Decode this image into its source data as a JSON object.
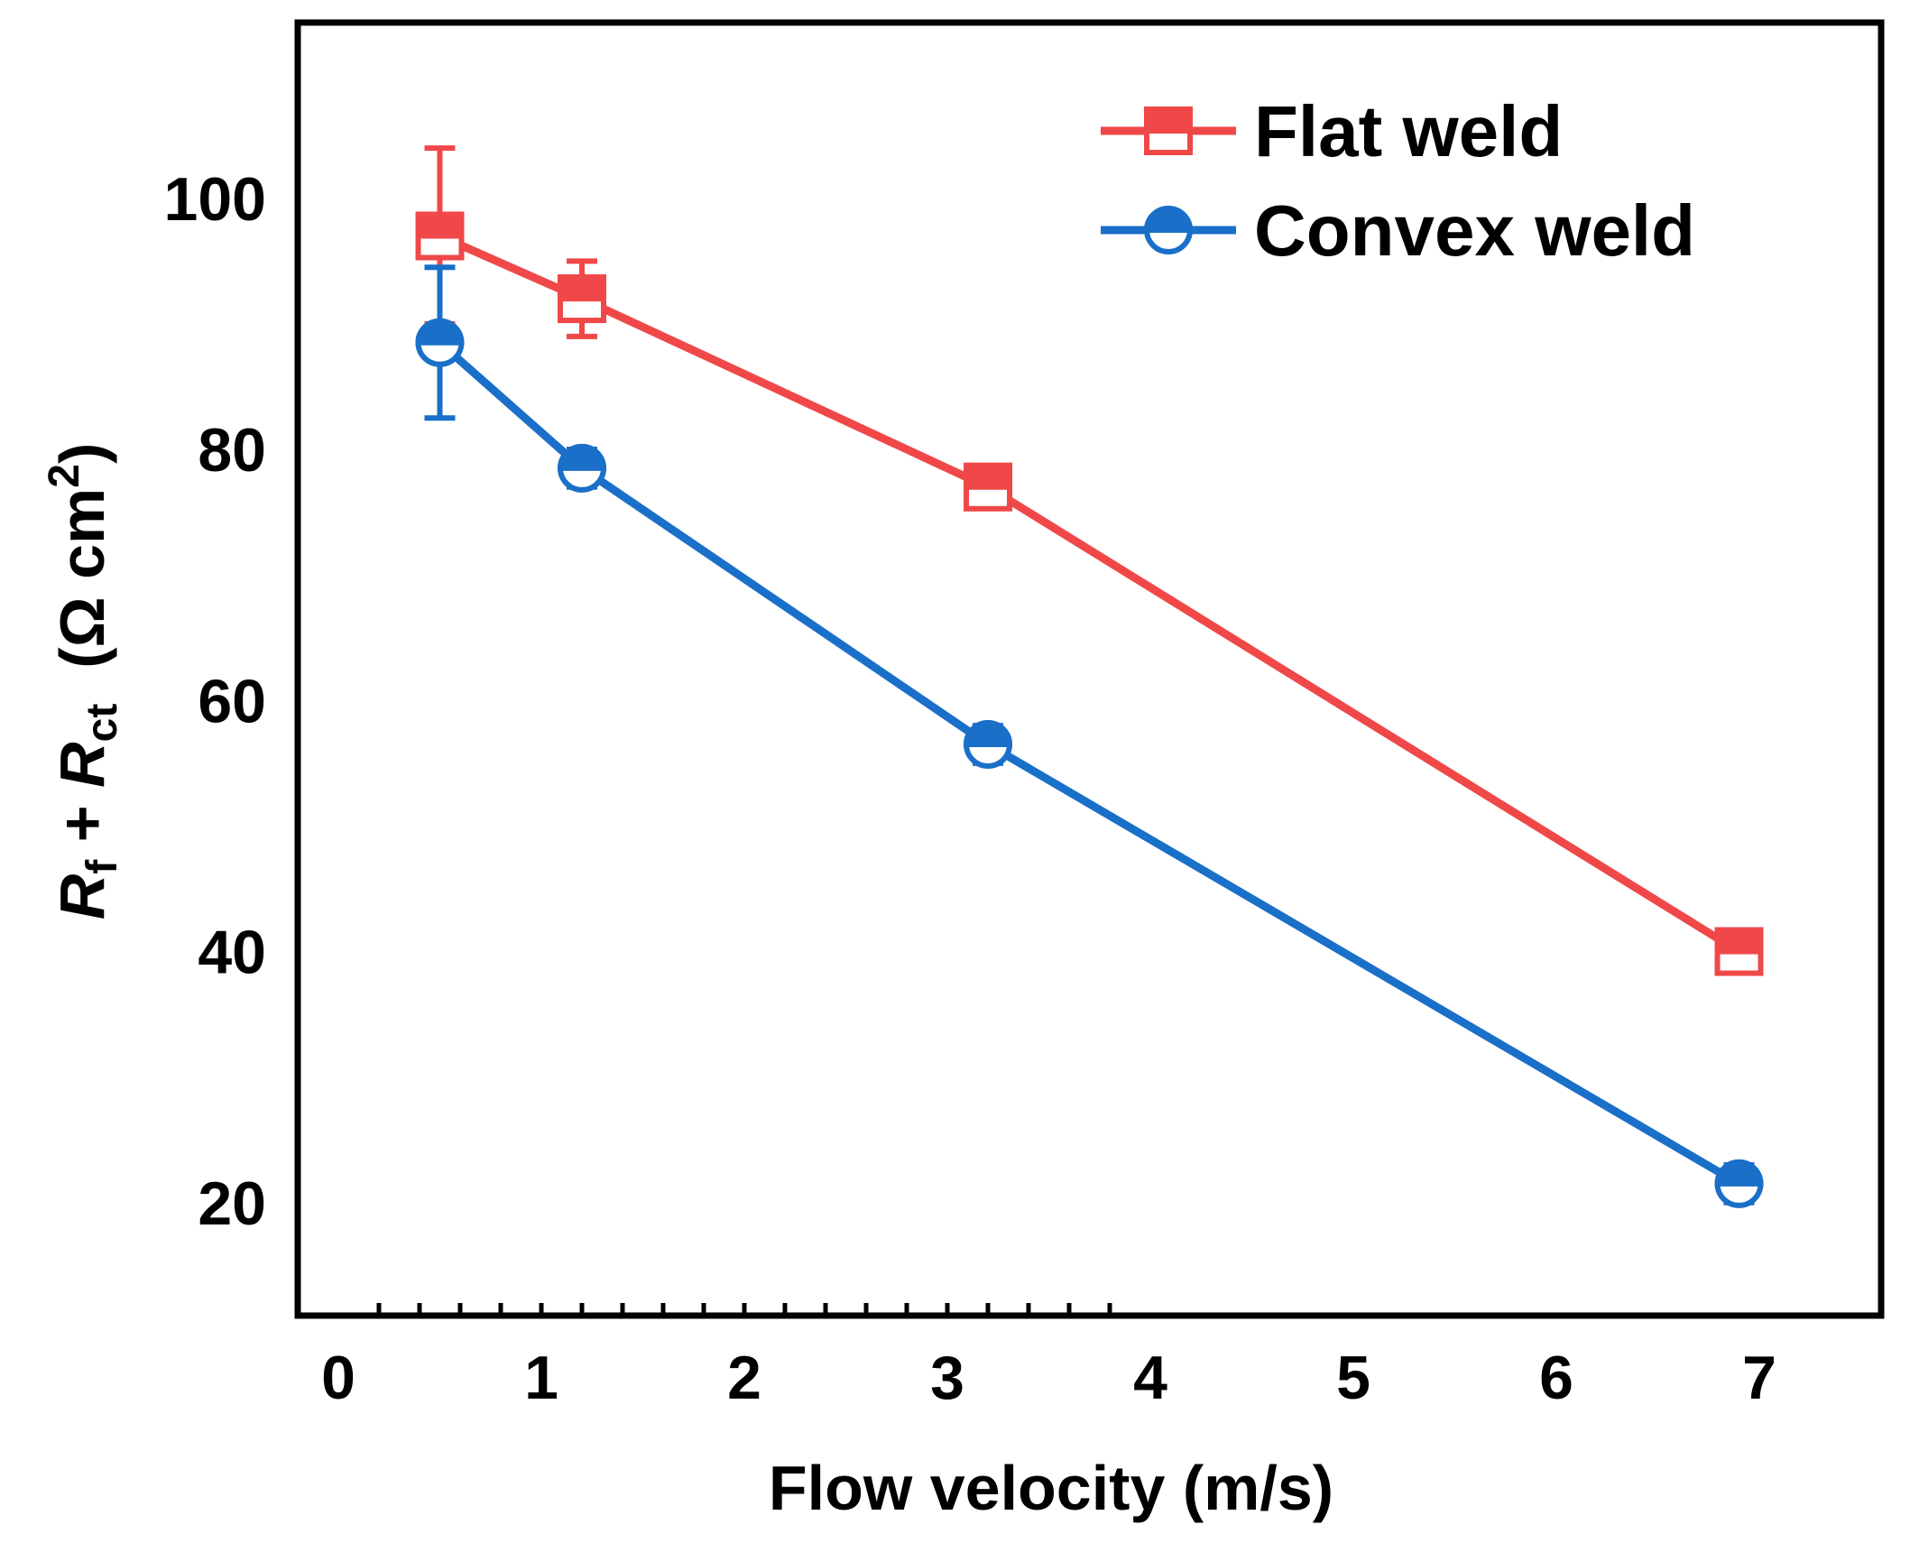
{
  "chart_data": {
    "type": "line",
    "title": "",
    "xlabel": "Flow velocity (m/s)",
    "ylabel": {
      "r1": "R",
      "r1_sub": "f",
      "plus": " + ",
      "r2": "R",
      "r2_sub": "ct",
      "unit_open": "  (Ω cm",
      "unit_sup": "2",
      "unit_close": ")"
    },
    "xlim": [
      -0.2,
      7.6
    ],
    "ylim": [
      11,
      114
    ],
    "xticks": [
      0,
      1,
      2,
      3,
      4,
      5,
      6,
      7
    ],
    "yticks": [
      20,
      40,
      60,
      80,
      100
    ],
    "legend_position": "top-right",
    "series": [
      {
        "name": "Flat weld",
        "color": "#f04848",
        "marker": "square-half",
        "x": [
          0.5,
          1.2,
          3.2,
          6.9
        ],
        "y": [
          97,
          92,
          77,
          40
        ],
        "err": [
          7,
          3,
          1,
          1.5
        ]
      },
      {
        "name": "Convex weld",
        "color": "#1a6fc8",
        "marker": "circle-half",
        "x": [
          0.5,
          1.2,
          3.2,
          6.9
        ],
        "y": [
          88.5,
          78.5,
          56.5,
          21.5
        ],
        "err": [
          6,
          1.5,
          1.5,
          1.5
        ]
      }
    ]
  }
}
